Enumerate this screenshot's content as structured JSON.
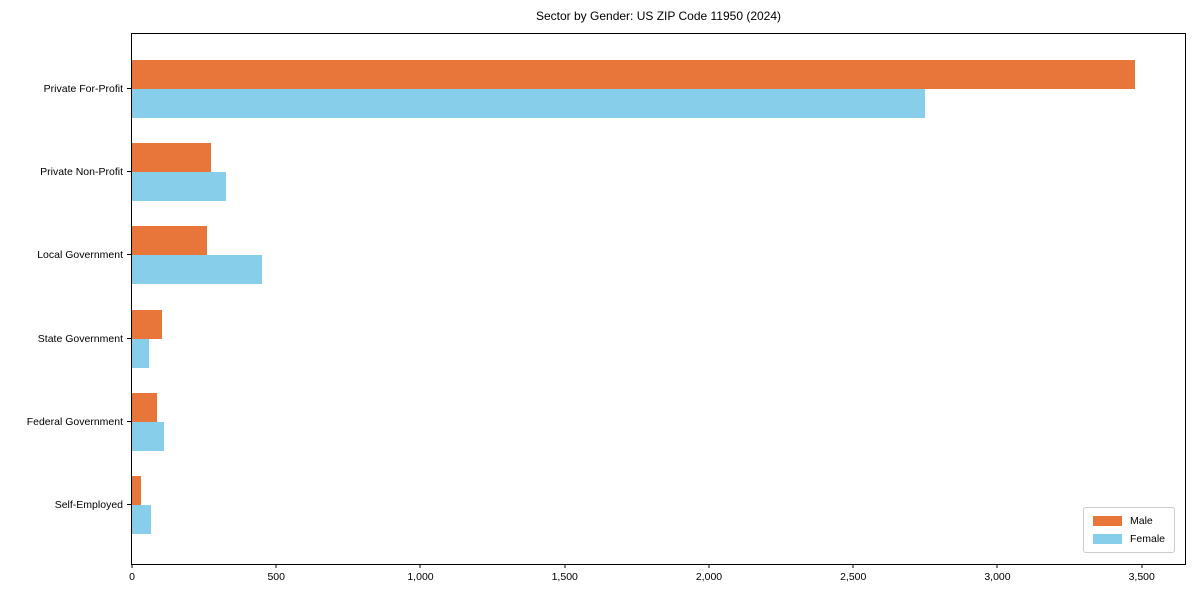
{
  "title": "Sector by Gender: US ZIP Code 11950 (2024)",
  "chart_data": {
    "type": "bar",
    "orientation": "horizontal",
    "title": "Sector by Gender: US ZIP Code 11950 (2024)",
    "xlabel": "",
    "ylabel": "",
    "categories": [
      "Private For-Profit",
      "Private Non-Profit",
      "Local Government",
      "State Government",
      "Federal Government",
      "Self-Employed"
    ],
    "series": [
      {
        "name": "Male",
        "color": "#e8763b",
        "values": [
          3475,
          275,
          260,
          105,
          85,
          30
        ]
      },
      {
        "name": "Female",
        "color": "#87ceeb",
        "values": [
          2750,
          325,
          450,
          60,
          110,
          65
        ]
      }
    ],
    "xlim": [
      0,
      3650
    ],
    "x_ticks": [
      0,
      500,
      1000,
      1500,
      2000,
      2500,
      3000,
      3500
    ],
    "x_tick_labels": [
      "0",
      "500",
      "1,000",
      "1,500",
      "2,000",
      "2,500",
      "3,000",
      "3,500"
    ],
    "grid": false,
    "legend": {
      "position": "lower right"
    },
    "colors": {
      "male": "#e8763b",
      "female": "#87ceeb",
      "axis": "#000000",
      "background": "#ffffff"
    }
  }
}
